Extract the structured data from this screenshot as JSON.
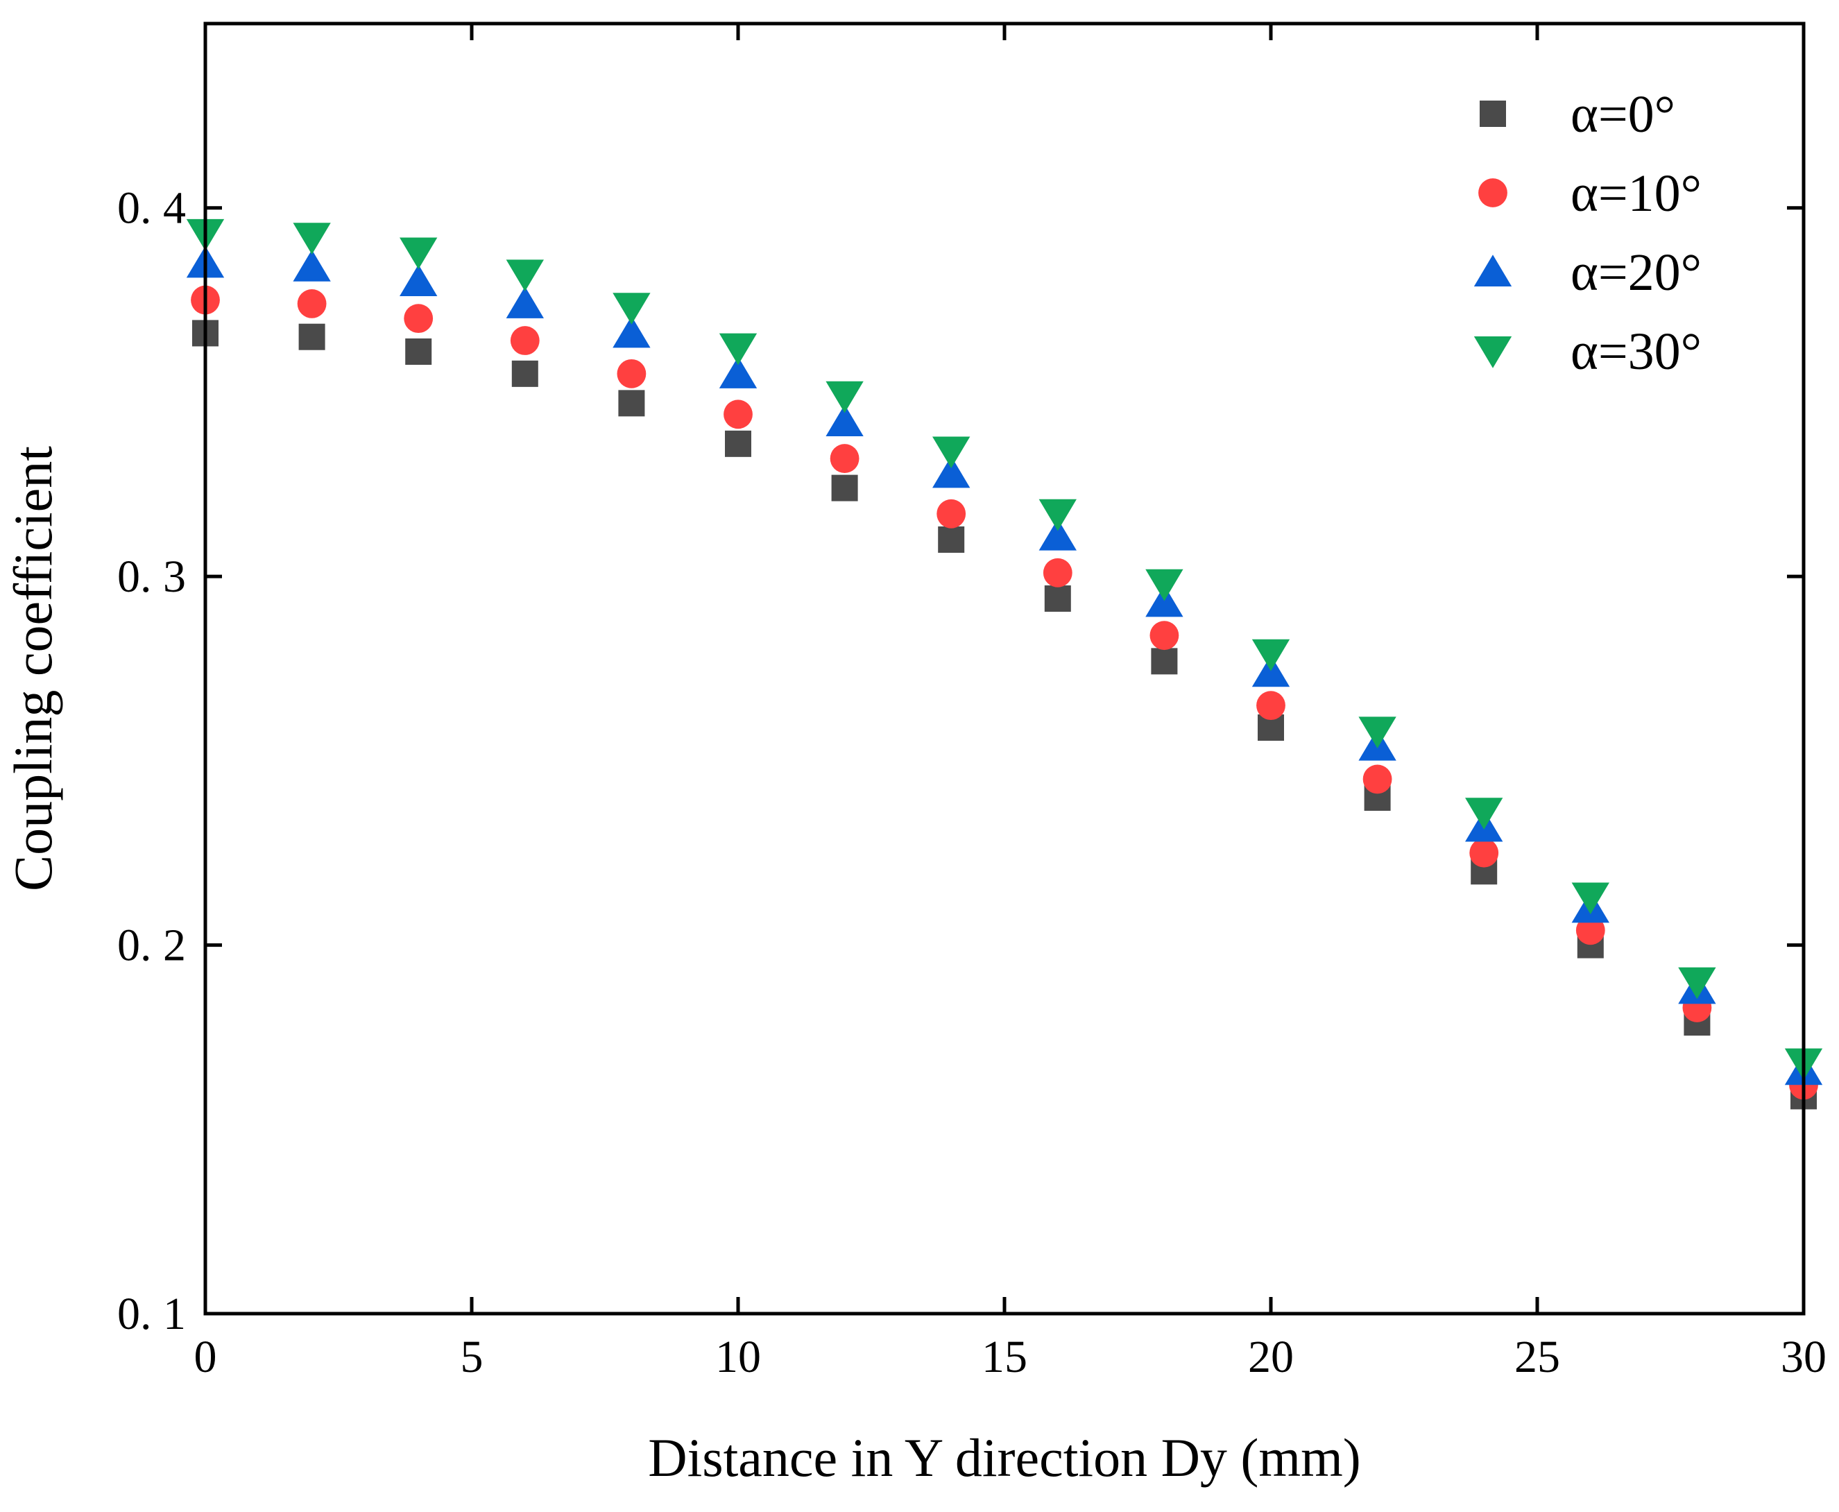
{
  "chart_data": {
    "type": "scatter",
    "title": "",
    "xlabel": "Distance in Y direction Dy (mm)",
    "ylabel": "Coupling coefficient",
    "xlim": [
      0,
      30
    ],
    "ylim": [
      0.1,
      0.45
    ],
    "x_ticks": [
      0,
      5,
      10,
      15,
      20,
      25,
      30
    ],
    "x_tick_labels": [
      "0",
      "5",
      "10",
      "15",
      "20",
      "25",
      "30"
    ],
    "y_ticks": [
      0.1,
      0.2,
      0.3,
      0.4
    ],
    "y_tick_labels": [
      "0. 1",
      "0. 2",
      "0. 3",
      "0. 4"
    ],
    "grid": false,
    "legend_position": "top-right",
    "x": [
      0,
      2,
      4,
      6,
      8,
      10,
      12,
      14,
      16,
      18,
      20,
      22,
      24,
      26,
      28,
      30
    ],
    "series": [
      {
        "name": "α=0°",
        "marker": "square",
        "color": "#4a4a4a",
        "values": [
          0.366,
          0.365,
          0.361,
          0.355,
          0.347,
          0.336,
          0.324,
          0.31,
          0.294,
          0.277,
          0.259,
          0.24,
          0.22,
          0.2,
          0.179,
          0.159
        ]
      },
      {
        "name": "α=10°",
        "marker": "circle",
        "color": "#ff4040",
        "values": [
          0.375,
          0.374,
          0.37,
          0.364,
          0.355,
          0.344,
          0.332,
          0.317,
          0.301,
          0.284,
          0.265,
          0.245,
          0.225,
          0.204,
          0.183,
          0.162
        ]
      },
      {
        "name": "α=20°",
        "marker": "triangle-up",
        "color": "#0a5fd6",
        "values": [
          0.385,
          0.384,
          0.38,
          0.374,
          0.366,
          0.355,
          0.342,
          0.328,
          0.311,
          0.293,
          0.274,
          0.254,
          0.232,
          0.21,
          0.188,
          0.166
        ]
      },
      {
        "name": "α=30°",
        "marker": "triangle-down",
        "color": "#10a85a",
        "values": [
          0.393,
          0.392,
          0.388,
          0.382,
          0.373,
          0.362,
          0.349,
          0.334,
          0.317,
          0.298,
          0.279,
          0.258,
          0.236,
          0.213,
          0.19,
          0.168
        ]
      }
    ]
  }
}
